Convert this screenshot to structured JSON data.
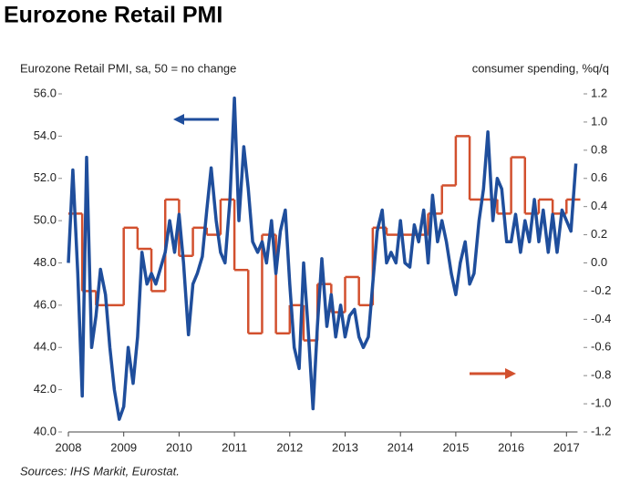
{
  "chart_data": {
    "type": "line",
    "title": "Eurozone Retail PMI",
    "ylabel": "Eurozone Retail PMI, sa, 50 = no change",
    "y2label": "consumer spending, %q/q",
    "source": "Sources: IHS Markit, Eurostat.",
    "xlim": [
      2008,
      2017.2
    ],
    "xticks": [
      2008,
      2009,
      2010,
      2011,
      2012,
      2013,
      2014,
      2015,
      2016,
      2017
    ],
    "ylim": [
      40,
      56
    ],
    "yticks": [
      {
        "value": 40,
        "label": "40.0"
      },
      {
        "value": 42,
        "label": "42.0"
      },
      {
        "value": 44,
        "label": "44.0"
      },
      {
        "value": 46,
        "label": "46.0"
      },
      {
        "value": 48,
        "label": "48.0"
      },
      {
        "value": 50,
        "label": "50.0"
      },
      {
        "value": 52,
        "label": "52.0"
      },
      {
        "value": 54,
        "label": "54.0"
      },
      {
        "value": 56,
        "label": "56.0"
      }
    ],
    "y2lim": [
      -1.2,
      1.2
    ],
    "y2ticks": [
      {
        "value": -1.2,
        "label": "-1.2"
      },
      {
        "value": -1.0,
        "label": "-1.0"
      },
      {
        "value": -0.8,
        "label": "-0.8"
      },
      {
        "value": -0.6,
        "label": "-0.6"
      },
      {
        "value": -0.4,
        "label": "-0.4"
      },
      {
        "value": -0.2,
        "label": "-0.2"
      },
      {
        "value": 0,
        "label": "0.0"
      },
      {
        "value": 0.2,
        "label": "0.2"
      },
      {
        "value": 0.4,
        "label": "0.4"
      },
      {
        "value": 0.6,
        "label": "0.6"
      },
      {
        "value": 0.8,
        "label": "0.8"
      },
      {
        "value": 1.0,
        "label": "1.0"
      },
      {
        "value": 1.2,
        "label": "1.2"
      }
    ],
    "series": [
      {
        "color": "#1f4e9c",
        "axis": "y",
        "x": [
          2008.0,
          2008.08,
          2008.17,
          2008.25,
          2008.33,
          2008.42,
          2008.5,
          2008.58,
          2008.67,
          2008.75,
          2008.83,
          2008.92,
          2009.0,
          2009.08,
          2009.17,
          2009.25,
          2009.33,
          2009.42,
          2009.5,
          2009.58,
          2009.67,
          2009.75,
          2009.83,
          2009.92,
          2010.0,
          2010.08,
          2010.17,
          2010.25,
          2010.33,
          2010.42,
          2010.5,
          2010.58,
          2010.67,
          2010.75,
          2010.83,
          2010.92,
          2011.0,
          2011.08,
          2011.17,
          2011.25,
          2011.33,
          2011.42,
          2011.5,
          2011.58,
          2011.67,
          2011.75,
          2011.83,
          2011.92,
          2012.0,
          2012.08,
          2012.17,
          2012.25,
          2012.33,
          2012.42,
          2012.5,
          2012.58,
          2012.67,
          2012.75,
          2012.83,
          2012.92,
          2013.0,
          2013.08,
          2013.17,
          2013.25,
          2013.33,
          2013.42,
          2013.5,
          2013.58,
          2013.67,
          2013.75,
          2013.83,
          2013.92,
          2014.0,
          2014.08,
          2014.17,
          2014.25,
          2014.33,
          2014.42,
          2014.5,
          2014.58,
          2014.67,
          2014.75,
          2014.83,
          2014.92,
          2015.0,
          2015.08,
          2015.17,
          2015.25,
          2015.33,
          2015.42,
          2015.5,
          2015.58,
          2015.67,
          2015.75,
          2015.83,
          2015.92,
          2016.0,
          2016.08,
          2016.17,
          2016.25,
          2016.33,
          2016.42,
          2016.5,
          2016.58,
          2016.67,
          2016.75,
          2016.83,
          2016.92,
          2017.0,
          2017.08,
          2017.17
        ],
        "values": [
          48.0,
          52.4,
          47.5,
          41.7,
          53.0,
          44.0,
          45.5,
          47.7,
          46.5,
          44.0,
          42.0,
          40.6,
          41.2,
          44.0,
          42.3,
          44.5,
          48.5,
          47.0,
          47.5,
          47.0,
          47.8,
          48.5,
          50.0,
          48.5,
          50.3,
          48.0,
          44.6,
          47.0,
          47.5,
          48.3,
          50.5,
          52.5,
          50.0,
          48.5,
          48.0,
          51.0,
          55.8,
          50.0,
          53.5,
          51.5,
          49.0,
          48.5,
          49.0,
          48.0,
          50.0,
          47.5,
          49.5,
          50.5,
          47.0,
          44.0,
          43.0,
          48.0,
          45.0,
          41.1,
          45.0,
          48.2,
          45.0,
          46.5,
          44.5,
          46.0,
          44.5,
          45.5,
          45.8,
          44.5,
          44.0,
          44.5,
          47.0,
          49.5,
          50.5,
          48.0,
          48.5,
          48.0,
          50.0,
          48.0,
          47.8,
          49.8,
          49.0,
          50.5,
          48.0,
          51.2,
          49.0,
          50.0,
          49.0,
          47.5,
          46.5,
          48.0,
          49.0,
          47.0,
          47.5,
          50.0,
          51.5,
          54.2,
          50.0,
          52.0,
          51.5,
          49.0,
          49.0,
          50.3,
          48.5,
          50.0,
          49.0,
          51.0,
          49.0,
          50.5,
          48.5,
          50.3,
          48.5,
          50.5,
          50.0,
          49.5,
          52.7
        ]
      },
      {
        "color": "#d2502e",
        "axis": "y2",
        "step": true,
        "x": [
          2008.0,
          2008.25,
          2008.5,
          2008.75,
          2009.0,
          2009.25,
          2009.5,
          2009.75,
          2010.0,
          2010.25,
          2010.5,
          2010.75,
          2011.0,
          2011.25,
          2011.5,
          2011.75,
          2012.0,
          2012.25,
          2012.5,
          2012.75,
          2013.0,
          2013.25,
          2013.5,
          2013.75,
          2014.0,
          2014.25,
          2014.5,
          2014.75,
          2015.0,
          2015.25,
          2015.5,
          2015.75,
          2016.0,
          2016.25,
          2016.5,
          2016.75,
          2017.0
        ],
        "values": [
          0.35,
          -0.2,
          -0.3,
          -0.3,
          0.25,
          0.1,
          -0.2,
          0.45,
          0.05,
          0.25,
          0.2,
          0.45,
          -0.05,
          -0.5,
          0.2,
          -0.5,
          -0.3,
          -0.55,
          -0.15,
          -0.35,
          -0.1,
          -0.3,
          0.25,
          0.2,
          0.2,
          0.2,
          0.35,
          0.55,
          0.9,
          0.45,
          0.45,
          0.35,
          0.75,
          0.35,
          0.45,
          0.35,
          0.45
        ]
      }
    ]
  }
}
